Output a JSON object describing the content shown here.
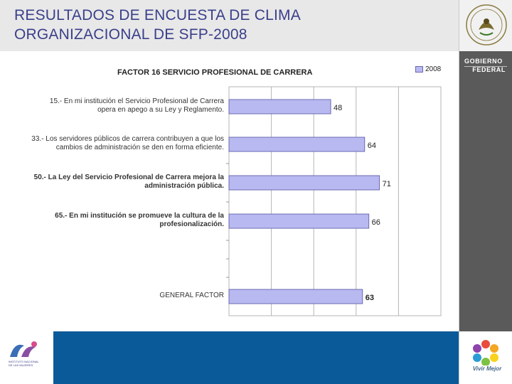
{
  "slide": {
    "title_line1": "RESULTADOS DE ENCUESTA DE CLIMA",
    "title_line2": "ORGANIZACIONAL DE SFP-2008"
  },
  "branding": {
    "gov_line1": "GOBIERNO",
    "gov_line2": "FEDERAL",
    "vivir": "Vivir Mejor",
    "institute_line1": "INSTITUTO NACIONAL",
    "institute_line2": "DE LAS MUJERES"
  },
  "colors": {
    "bar_fill": "#b9b9f2",
    "bar_stroke": "#6a6ab0",
    "plot_bg": "#ffffff",
    "grid": "#b5b5b5",
    "bottom_band": "#0a5a99",
    "title": "#3a3f8a"
  },
  "chart_data": {
    "type": "bar",
    "orientation": "horizontal",
    "title": "FACTOR  16 SERVICIO PROFESIONAL DE CARRERA",
    "series": [
      {
        "name": "2008",
        "values": [
          48,
          64,
          71,
          66,
          63
        ]
      }
    ],
    "categories": [
      {
        "lines": [
          "15.-  En mi institución el Servicio Profesional de Carrera",
          "opera en apego a su Ley y Reglamento."
        ],
        "bold": false
      },
      {
        "lines": [
          "33.-  Los servidores públicos de carrera contribuyen a que los",
          "cambios de administración se den en forma eficiente."
        ],
        "bold": false
      },
      {
        "lines": [
          "50.-  La Ley del Servicio Profesional de Carrera mejora la",
          "administración pública."
        ],
        "bold": true
      },
      {
        "lines": [
          "65.-  En mi institución se promueve la cultura de la",
          "profesionalización."
        ],
        "bold": true
      },
      {
        "lines": [
          "GENERAL FACTOR"
        ],
        "bold": false
      }
    ],
    "data_labels": [
      "48",
      "64",
      "71",
      "66",
      "63"
    ],
    "xlim": [
      0,
      100
    ],
    "grid": true,
    "legend_position": "top-right"
  }
}
